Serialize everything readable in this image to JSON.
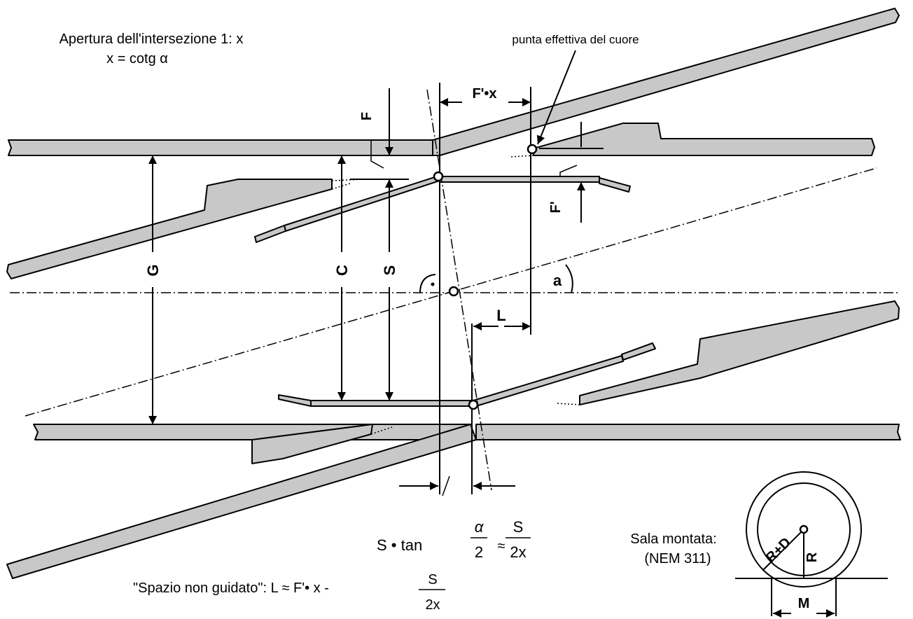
{
  "header": {
    "opening_title": "Apertura dell'intersezione 1: x",
    "opening_formula": "x = cotg α",
    "frog_point_label": "punta effettiva del cuore"
  },
  "dimensions": {
    "f_prime_x": "F'•x",
    "f": "F",
    "f_prime": "F'",
    "g": "G",
    "c": "C",
    "s": "S",
    "a": "a",
    "l": "L"
  },
  "formula_offset": {
    "lhs": "S • tan",
    "alpha": "α",
    "den_2": "2",
    "approx": "≈",
    "num_s": "S",
    "den_2x": "2x"
  },
  "formula_unguided": {
    "lhs": "\"Spazio non guidato\": L  ≈  F'• x  -",
    "num_s": "S",
    "den_2x": "2x"
  },
  "wheelset": {
    "title": "Sala montata:",
    "standard": "(NEM 311)",
    "r_plus_d": "R+D",
    "r": "R",
    "m": "M"
  },
  "colors": {
    "rail_fill": "#c8c8c8",
    "stroke": "#000000",
    "background": "#ffffff"
  }
}
